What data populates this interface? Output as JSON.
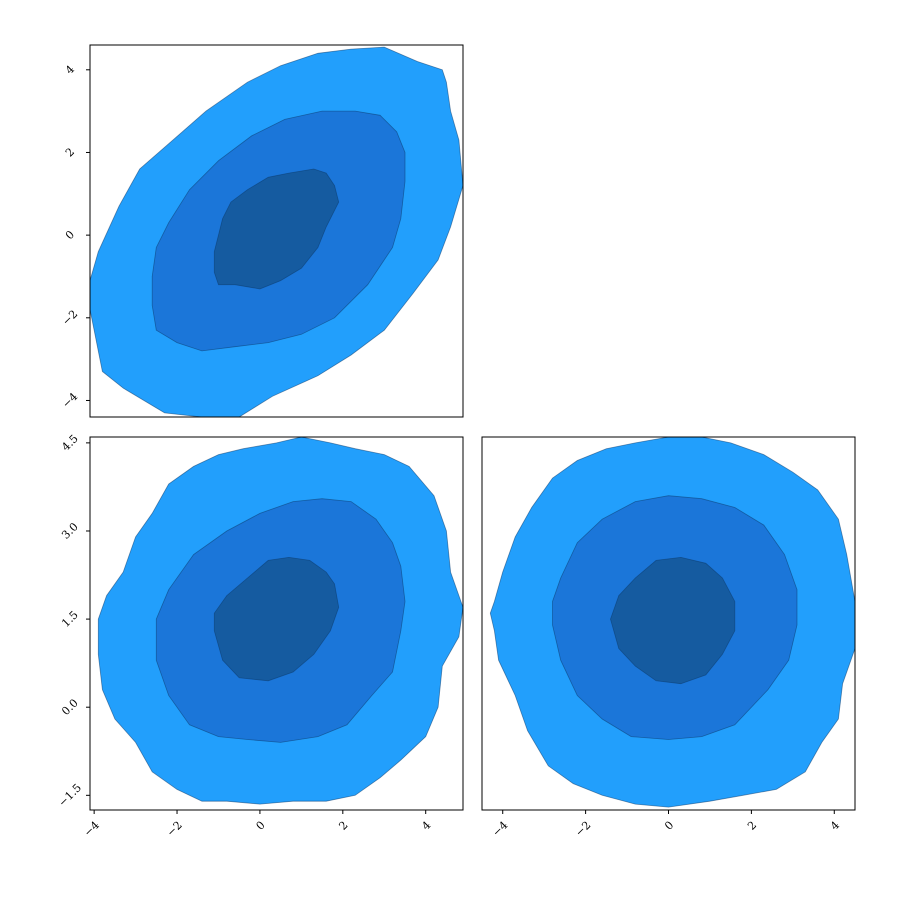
{
  "chart_data": [
    {
      "type": "contour",
      "panel": "top-left",
      "xlim": [
        -4.1,
        4.9
      ],
      "ylim": [
        -4.4,
        4.6
      ],
      "xticks": [],
      "yticks": [
        -4,
        -2,
        0,
        2,
        4
      ],
      "levels": [
        {
          "level": "outer",
          "color": "#229ffc",
          "outline": [
            [
              -4.1,
              -1.8
            ],
            [
              -3.8,
              -3.3
            ],
            [
              -3.3,
              -3.7
            ],
            [
              -2.3,
              -4.3
            ],
            [
              -1.4,
              -4.4
            ],
            [
              -0.5,
              -4.4
            ],
            [
              0.3,
              -3.9
            ],
            [
              1.4,
              -3.4
            ],
            [
              2.2,
              -2.9
            ],
            [
              3.0,
              -2.3
            ],
            [
              3.7,
              -1.4
            ],
            [
              4.3,
              -0.6
            ],
            [
              4.6,
              0.2
            ],
            [
              4.9,
              1.2
            ],
            [
              4.8,
              2.3
            ],
            [
              4.6,
              3.0
            ],
            [
              4.5,
              3.7
            ],
            [
              4.4,
              4.0
            ],
            [
              3.8,
              4.2
            ],
            [
              3.0,
              4.55
            ],
            [
              2.2,
              4.5
            ],
            [
              1.4,
              4.4
            ],
            [
              0.5,
              4.1
            ],
            [
              -0.3,
              3.7
            ],
            [
              -1.3,
              3.0
            ],
            [
              -2.1,
              2.3
            ],
            [
              -2.9,
              1.6
            ],
            [
              -3.4,
              0.7
            ],
            [
              -3.9,
              -0.4
            ],
            [
              -4.1,
              -1.1
            ]
          ]
        },
        {
          "level": "middle",
          "color": "#1b76d9",
          "outline": [
            [
              -2.5,
              -2.3
            ],
            [
              -2.0,
              -2.6
            ],
            [
              -1.4,
              -2.8
            ],
            [
              -0.6,
              -2.7
            ],
            [
              0.2,
              -2.6
            ],
            [
              1.0,
              -2.4
            ],
            [
              1.8,
              -2.0
            ],
            [
              2.6,
              -1.2
            ],
            [
              3.2,
              -0.3
            ],
            [
              3.4,
              0.4
            ],
            [
              3.5,
              1.3
            ],
            [
              3.5,
              2.0
            ],
            [
              3.3,
              2.5
            ],
            [
              2.9,
              2.9
            ],
            [
              2.3,
              3.0
            ],
            [
              1.5,
              3.0
            ],
            [
              0.6,
              2.8
            ],
            [
              -0.2,
              2.4
            ],
            [
              -1.0,
              1.8
            ],
            [
              -1.7,
              1.1
            ],
            [
              -2.2,
              0.3
            ],
            [
              -2.5,
              -0.3
            ],
            [
              -2.6,
              -1.0
            ],
            [
              -2.6,
              -1.7
            ]
          ]
        },
        {
          "level": "inner",
          "color": "#155ba0",
          "outline": [
            [
              -1.0,
              -1.2
            ],
            [
              -0.6,
              -1.2
            ],
            [
              0.0,
              -1.3
            ],
            [
              0.5,
              -1.1
            ],
            [
              1.0,
              -0.8
            ],
            [
              1.4,
              -0.3
            ],
            [
              1.6,
              0.2
            ],
            [
              1.9,
              0.8
            ],
            [
              1.8,
              1.2
            ],
            [
              1.6,
              1.5
            ],
            [
              1.3,
              1.6
            ],
            [
              0.7,
              1.5
            ],
            [
              0.2,
              1.4
            ],
            [
              -0.3,
              1.1
            ],
            [
              -0.7,
              0.8
            ],
            [
              -0.9,
              0.4
            ],
            [
              -1.0,
              0.0
            ],
            [
              -1.1,
              -0.4
            ],
            [
              -1.1,
              -0.9
            ]
          ]
        }
      ]
    },
    {
      "type": "contour",
      "panel": "bottom-left",
      "xlim": [
        -4.1,
        4.9
      ],
      "ylim": [
        -1.75,
        4.6
      ],
      "xticks": [
        -4,
        -2,
        0,
        2,
        4
      ],
      "yticks": [
        -1.5,
        0.0,
        1.5,
        3.0,
        4.5
      ],
      "levels": [
        {
          "level": "outer",
          "color": "#229ffc",
          "outline": [
            [
              -3.9,
              1.5
            ],
            [
              -3.7,
              1.9
            ],
            [
              -3.3,
              2.3
            ],
            [
              -3.0,
              2.9
            ],
            [
              -2.6,
              3.3
            ],
            [
              -2.2,
              3.8
            ],
            [
              -1.6,
              4.1
            ],
            [
              -1.0,
              4.3
            ],
            [
              -0.4,
              4.4
            ],
            [
              0.4,
              4.5
            ],
            [
              1.0,
              4.6
            ],
            [
              1.7,
              4.5
            ],
            [
              2.3,
              4.4
            ],
            [
              3.0,
              4.3
            ],
            [
              3.6,
              4.1
            ],
            [
              4.2,
              3.6
            ],
            [
              4.5,
              3.0
            ],
            [
              4.6,
              2.3
            ],
            [
              4.9,
              1.7
            ],
            [
              4.8,
              1.2
            ],
            [
              4.4,
              0.7
            ],
            [
              4.3,
              0.0
            ],
            [
              4.0,
              -0.5
            ],
            [
              3.4,
              -0.9
            ],
            [
              2.9,
              -1.2
            ],
            [
              2.3,
              -1.5
            ],
            [
              1.6,
              -1.6
            ],
            [
              0.8,
              -1.6
            ],
            [
              0.0,
              -1.65
            ],
            [
              -0.8,
              -1.6
            ],
            [
              -1.4,
              -1.6
            ],
            [
              -2.0,
              -1.4
            ],
            [
              -2.6,
              -1.1
            ],
            [
              -3.0,
              -0.6
            ],
            [
              -3.5,
              -0.2
            ],
            [
              -3.8,
              0.3
            ],
            [
              -3.9,
              0.9
            ]
          ]
        },
        {
          "level": "middle",
          "color": "#1b76d9",
          "outline": [
            [
              -2.5,
              0.8
            ],
            [
              -2.2,
              0.2
            ],
            [
              -1.7,
              -0.3
            ],
            [
              -1.0,
              -0.5
            ],
            [
              -0.3,
              -0.55
            ],
            [
              0.5,
              -0.6
            ],
            [
              1.4,
              -0.5
            ],
            [
              2.1,
              -0.3
            ],
            [
              2.7,
              0.2
            ],
            [
              3.2,
              0.6
            ],
            [
              3.4,
              1.3
            ],
            [
              3.5,
              1.8
            ],
            [
              3.4,
              2.4
            ],
            [
              3.2,
              2.8
            ],
            [
              2.8,
              3.2
            ],
            [
              2.2,
              3.5
            ],
            [
              1.5,
              3.55
            ],
            [
              0.8,
              3.5
            ],
            [
              0.0,
              3.3
            ],
            [
              -0.8,
              3.0
            ],
            [
              -1.6,
              2.6
            ],
            [
              -2.2,
              2.0
            ],
            [
              -2.5,
              1.5
            ]
          ]
        },
        {
          "level": "inner",
          "color": "#155ba0",
          "outline": [
            [
              -1.1,
              1.3
            ],
            [
              -0.9,
              0.8
            ],
            [
              -0.5,
              0.5
            ],
            [
              0.2,
              0.45
            ],
            [
              0.8,
              0.6
            ],
            [
              1.3,
              0.9
            ],
            [
              1.7,
              1.3
            ],
            [
              1.9,
              1.7
            ],
            [
              1.8,
              2.1
            ],
            [
              1.6,
              2.3
            ],
            [
              1.2,
              2.5
            ],
            [
              0.7,
              2.55
            ],
            [
              0.2,
              2.5
            ],
            [
              -0.3,
              2.2
            ],
            [
              -0.8,
              1.9
            ],
            [
              -1.1,
              1.6
            ]
          ]
        }
      ]
    },
    {
      "type": "contour",
      "panel": "bottom-right",
      "xlim": [
        -4.5,
        4.5
      ],
      "ylim": [
        -1.75,
        4.6
      ],
      "xticks": [
        -4,
        -2,
        0,
        2,
        4
      ],
      "yticks": [],
      "levels": [
        {
          "level": "outer",
          "color": "#229ffc",
          "outline": [
            [
              -4.2,
              1.8
            ],
            [
              -4.0,
              2.3
            ],
            [
              -3.7,
              2.9
            ],
            [
              -3.3,
              3.4
            ],
            [
              -2.8,
              3.9
            ],
            [
              -2.2,
              4.2
            ],
            [
              -1.5,
              4.4
            ],
            [
              -0.8,
              4.5
            ],
            [
              0.0,
              4.6
            ],
            [
              0.8,
              4.6
            ],
            [
              1.5,
              4.5
            ],
            [
              2.3,
              4.3
            ],
            [
              3.0,
              4.0
            ],
            [
              3.6,
              3.7
            ],
            [
              4.1,
              3.2
            ],
            [
              4.3,
              2.6
            ],
            [
              4.5,
              1.8
            ],
            [
              4.5,
              1.0
            ],
            [
              4.2,
              0.4
            ],
            [
              4.1,
              -0.2
            ],
            [
              3.7,
              -0.6
            ],
            [
              3.3,
              -1.1
            ],
            [
              2.6,
              -1.4
            ],
            [
              1.8,
              -1.5
            ],
            [
              1.0,
              -1.6
            ],
            [
              0.0,
              -1.7
            ],
            [
              -0.8,
              -1.65
            ],
            [
              -1.6,
              -1.5
            ],
            [
              -2.3,
              -1.3
            ],
            [
              -2.9,
              -1.0
            ],
            [
              -3.4,
              -0.4
            ],
            [
              -3.7,
              0.2
            ],
            [
              -4.1,
              0.8
            ],
            [
              -4.2,
              1.3
            ],
            [
              -4.3,
              1.6
            ]
          ]
        },
        {
          "level": "middle",
          "color": "#1b76d9",
          "outline": [
            [
              -2.8,
              1.4
            ],
            [
              -2.6,
              0.8
            ],
            [
              -2.2,
              0.2
            ],
            [
              -1.6,
              -0.2
            ],
            [
              -0.9,
              -0.5
            ],
            [
              0.0,
              -0.55
            ],
            [
              0.8,
              -0.5
            ],
            [
              1.6,
              -0.3
            ],
            [
              2.4,
              0.3
            ],
            [
              2.9,
              0.8
            ],
            [
              3.1,
              1.4
            ],
            [
              3.1,
              2.0
            ],
            [
              2.8,
              2.6
            ],
            [
              2.3,
              3.1
            ],
            [
              1.6,
              3.4
            ],
            [
              0.8,
              3.55
            ],
            [
              0.0,
              3.6
            ],
            [
              -0.8,
              3.5
            ],
            [
              -1.6,
              3.2
            ],
            [
              -2.2,
              2.8
            ],
            [
              -2.6,
              2.2
            ],
            [
              -2.8,
              1.8
            ]
          ]
        },
        {
          "level": "inner",
          "color": "#155ba0",
          "outline": [
            [
              -1.4,
              1.5
            ],
            [
              -1.2,
              1.0
            ],
            [
              -0.8,
              0.7
            ],
            [
              -0.3,
              0.45
            ],
            [
              0.3,
              0.4
            ],
            [
              0.9,
              0.55
            ],
            [
              1.3,
              0.9
            ],
            [
              1.6,
              1.3
            ],
            [
              1.6,
              1.8
            ],
            [
              1.3,
              2.2
            ],
            [
              0.9,
              2.45
            ],
            [
              0.3,
              2.55
            ],
            [
              -0.3,
              2.5
            ],
            [
              -0.8,
              2.2
            ],
            [
              -1.2,
              1.9
            ]
          ]
        }
      ]
    }
  ]
}
